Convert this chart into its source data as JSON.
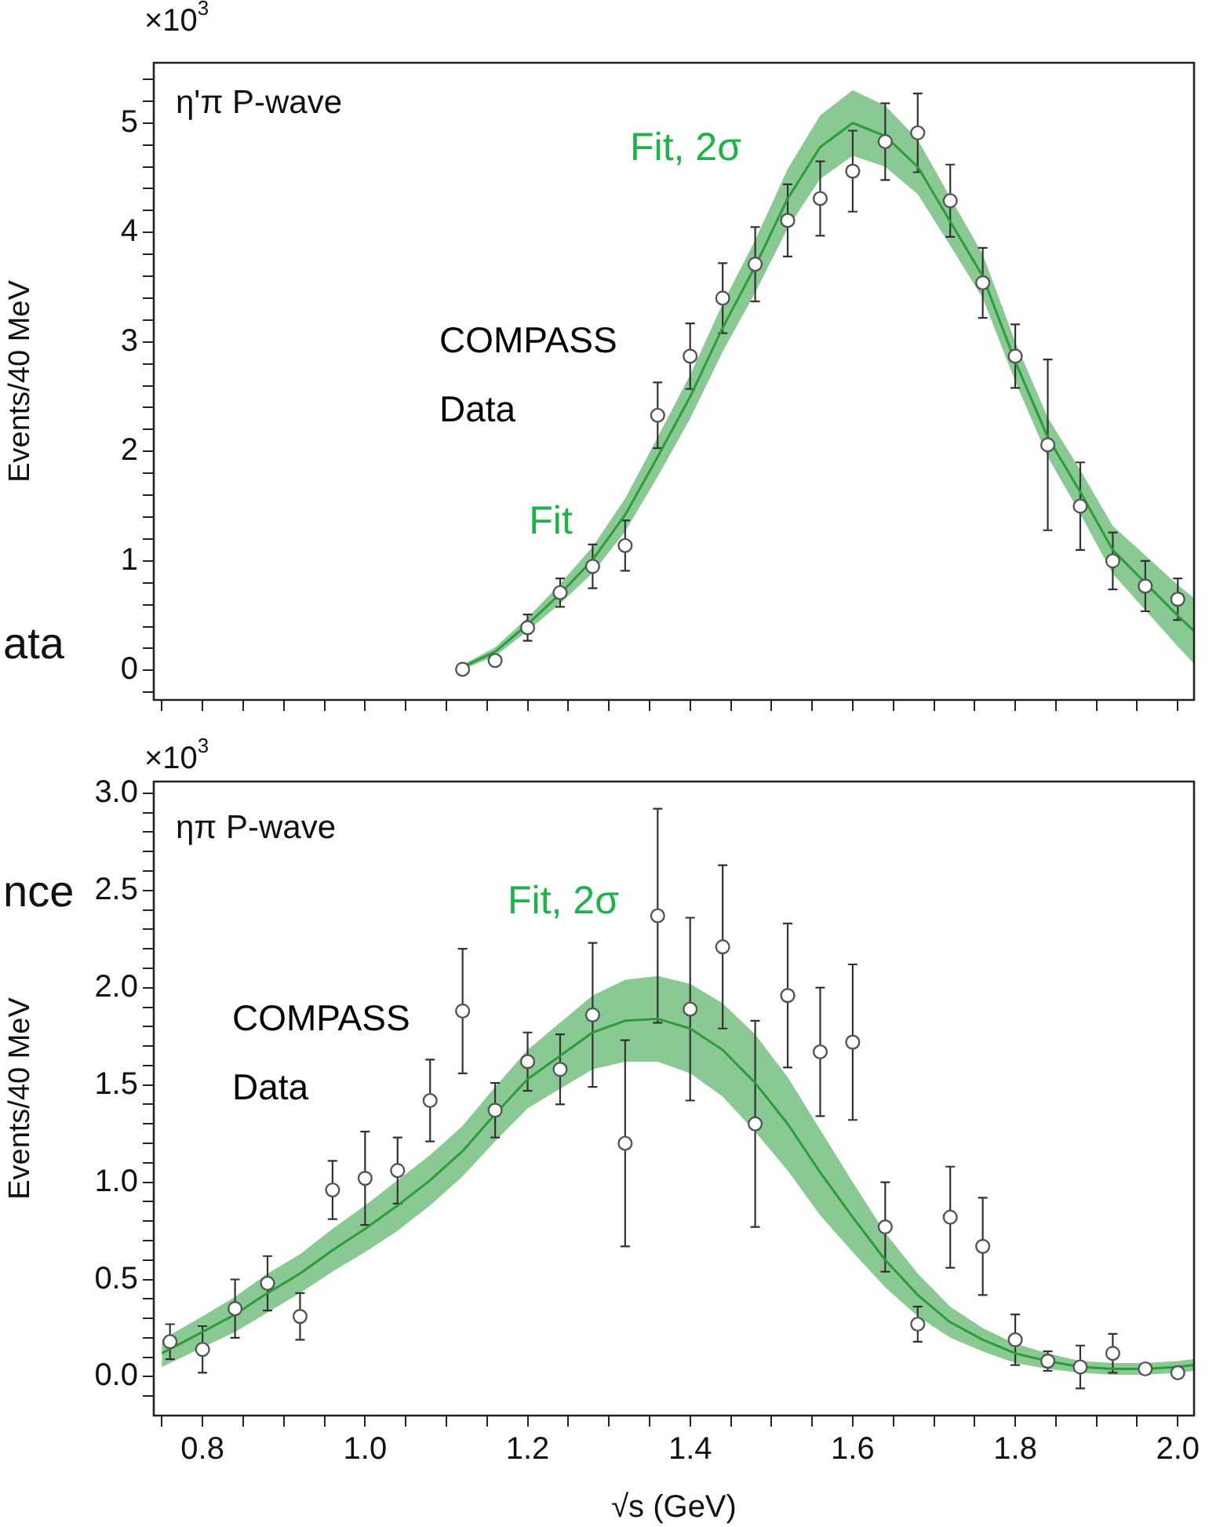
{
  "chart_data": [
    {
      "type": "scatter",
      "ylabel": "Events/40 MeV",
      "tick_labels": "y",
      "annotations": [
        "×10$^{3}$",
        "η'π P-wave",
        "ata",
        "Fit, 2σ",
        "Fit"
      ],
      "xlim": [
        0.74,
        2.02
      ],
      "ylim": [
        -0.27,
        5.55
      ],
      "xticks": [
        {
          "value": 0.75,
          "label": null
        },
        {
          "value": 0.8,
          "label": null
        },
        {
          "value": 0.85,
          "label": null
        },
        {
          "value": 0.9,
          "label": null
        },
        {
          "value": 0.95,
          "label": null
        },
        {
          "value": 1,
          "label": null
        },
        {
          "value": 1.05,
          "label": null
        },
        {
          "value": 1.1,
          "label": null
        },
        {
          "value": 1.15,
          "label": null
        },
        {
          "value": 1.2,
          "label": null
        },
        {
          "value": 1.25,
          "label": null
        },
        {
          "value": 1.3,
          "label": null
        },
        {
          "value": 1.35,
          "label": null
        },
        {
          "value": 1.4,
          "label": null
        },
        {
          "value": 1.45,
          "label": null
        },
        {
          "value": 1.5,
          "label": null
        },
        {
          "value": 1.55,
          "label": null
        },
        {
          "value": 1.6,
          "label": null
        },
        {
          "value": 1.65,
          "label": null
        },
        {
          "value": 1.7,
          "label": null
        },
        {
          "value": 1.75,
          "label": null
        },
        {
          "value": 1.8,
          "label": null
        },
        {
          "value": 1.85,
          "label": null
        },
        {
          "value": 1.9,
          "label": null
        },
        {
          "value": 1.95,
          "label": null
        },
        {
          "value": 2,
          "label": null
        }
      ],
      "yticks": [
        {
          "value": -0.2,
          "label": null
        },
        0,
        {
          "value": 0.2,
          "label": null
        },
        {
          "value": 0.4,
          "label": null
        },
        {
          "value": 0.6,
          "label": null
        },
        {
          "value": 0.8,
          "label": null
        },
        1,
        {
          "value": 1.2,
          "label": null
        },
        {
          "value": 1.4,
          "label": null
        },
        {
          "value": 1.6,
          "label": null
        },
        {
          "value": 1.8,
          "label": null
        },
        2,
        {
          "value": 2.2,
          "label": null
        },
        {
          "value": 2.4,
          "label": null
        },
        {
          "value": 2.6,
          "label": null
        },
        {
          "value": 2.8,
          "label": null
        },
        3,
        {
          "value": 3.2,
          "label": null
        },
        {
          "value": 3.4,
          "label": null
        },
        {
          "value": 3.6,
          "label": null
        },
        {
          "value": 3.8,
          "label": null
        },
        4,
        {
          "value": 4.2,
          "label": null
        },
        {
          "value": 4.4,
          "label": null
        },
        {
          "value": 4.6,
          "label": null
        },
        {
          "value": 4.8,
          "label": null
        },
        5,
        {
          "value": 5.2,
          "label": null
        },
        {
          "value": 5.4,
          "label": null
        }
      ],
      "series": [
        {
          "type": "line",
          "color": "#2a9d3a",
          "x": [
            1.12,
            1.16,
            1.2,
            1.24,
            1.28,
            1.32,
            1.36,
            1.4,
            1.44,
            1.48,
            1.52,
            1.56,
            1.6,
            1.64,
            1.68,
            1.72,
            1.76,
            1.8,
            1.84,
            1.88,
            1.92,
            1.96,
            2.0,
            2.02
          ],
          "values": [
            0.03,
            0.17,
            0.42,
            0.7,
            1.01,
            1.42,
            1.95,
            2.5,
            3.13,
            3.69,
            4.31,
            4.78,
            5.0,
            4.88,
            4.6,
            4.1,
            3.6,
            2.82,
            2.13,
            1.63,
            1.1,
            0.8,
            0.5,
            0.36
          ],
          "lower": [
            0.01,
            0.13,
            0.36,
            0.61,
            0.89,
            1.27,
            1.77,
            2.3,
            2.91,
            3.45,
            4.04,
            4.49,
            4.7,
            4.6,
            4.35,
            3.88,
            3.4,
            2.64,
            1.95,
            1.43,
            0.88,
            0.55,
            0.22,
            0.06
          ],
          "upper": [
            0.05,
            0.21,
            0.48,
            0.79,
            1.13,
            1.57,
            2.13,
            2.7,
            3.35,
            3.93,
            4.58,
            5.07,
            5.3,
            5.16,
            4.85,
            4.32,
            3.8,
            3.0,
            2.31,
            1.83,
            1.32,
            1.05,
            0.78,
            0.66
          ]
        },
        {
          "name": "COMPASS Data",
          "color": "#555555",
          "marker": "circle",
          "x": [
            1.12,
            1.16,
            1.2,
            1.24,
            1.28,
            1.32,
            1.36,
            1.4,
            1.44,
            1.48,
            1.52,
            1.56,
            1.6,
            1.64,
            1.68,
            1.72,
            1.76,
            1.8,
            1.84,
            1.88,
            1.92,
            1.96,
            2.0
          ],
          "values": [
            0.01,
            0.09,
            0.39,
            0.71,
            0.95,
            1.14,
            2.33,
            2.87,
            3.4,
            3.71,
            4.11,
            4.31,
            4.56,
            4.83,
            4.91,
            4.29,
            3.54,
            2.87,
            2.06,
            1.5,
            1.0,
            0.77,
            0.65
          ],
          "errors": [
            null,
            null,
            0.12,
            0.13,
            0.2,
            0.23,
            0.3,
            0.3,
            0.32,
            0.34,
            0.33,
            0.34,
            0.37,
            0.35,
            0.36,
            0.33,
            0.32,
            0.29,
            0.78,
            0.4,
            0.26,
            0.23,
            0.19
          ]
        }
      ]
    },
    {
      "type": "scatter",
      "ylabel": "Events/40 MeV",
      "xlabel": "√s (GeV)",
      "annotations": [
        "×10$^{3}$",
        "ηπ P-wave",
        "nce",
        "Fit, 2σ"
      ],
      "xlim": [
        0.74,
        2.02
      ],
      "ylim": [
        -0.2,
        3.06
      ],
      "xticks": [
        {
          "value": 0.75,
          "label": null
        },
        0.8,
        {
          "value": 0.85,
          "label": null
        },
        {
          "value": 0.9,
          "label": null
        },
        {
          "value": 0.95,
          "label": null
        },
        {
          "value": 1,
          "label": "1.0"
        },
        {
          "value": 1.05,
          "label": null
        },
        {
          "value": 1.1,
          "label": null
        },
        {
          "value": 1.15,
          "label": null
        },
        1.2,
        {
          "value": 1.25,
          "label": null
        },
        {
          "value": 1.3,
          "label": null
        },
        {
          "value": 1.35,
          "label": null
        },
        1.4,
        {
          "value": 1.45,
          "label": null
        },
        {
          "value": 1.5,
          "label": null
        },
        {
          "value": 1.55,
          "label": null
        },
        1.6,
        {
          "value": 1.65,
          "label": null
        },
        {
          "value": 1.7,
          "label": null
        },
        {
          "value": 1.75,
          "label": null
        },
        1.8,
        {
          "value": 1.85,
          "label": null
        },
        {
          "value": 1.9,
          "label": null
        },
        {
          "value": 1.95,
          "label": null
        },
        {
          "value": 2,
          "label": "2.0"
        }
      ],
      "yticks": [
        {
          "value": -0.1,
          "label": null
        },
        {
          "value": 0,
          "label": "0.0"
        },
        {
          "value": 0.1,
          "label": null
        },
        {
          "value": 0.2,
          "label": null
        },
        {
          "value": 0.3,
          "label": null
        },
        {
          "value": 0.4,
          "label": null
        },
        0.5,
        {
          "value": 0.6,
          "label": null
        },
        {
          "value": 0.7,
          "label": null
        },
        {
          "value": 0.8,
          "label": null
        },
        {
          "value": 0.9,
          "label": null
        },
        {
          "value": 1,
          "label": "1.0"
        },
        {
          "value": 1.1,
          "label": null
        },
        {
          "value": 1.2,
          "label": null
        },
        {
          "value": 1.3,
          "label": null
        },
        {
          "value": 1.4,
          "label": null
        },
        1.5,
        {
          "value": 1.6,
          "label": null
        },
        {
          "value": 1.7,
          "label": null
        },
        {
          "value": 1.8,
          "label": null
        },
        {
          "value": 1.9,
          "label": null
        },
        {
          "value": 2,
          "label": "2.0"
        },
        {
          "value": 2.1,
          "label": null
        },
        {
          "value": 2.2,
          "label": null
        },
        {
          "value": 2.3,
          "label": null
        },
        {
          "value": 2.4,
          "label": null
        },
        2.5,
        {
          "value": 2.6,
          "label": null
        },
        {
          "value": 2.7,
          "label": null
        },
        {
          "value": 2.8,
          "label": null
        },
        {
          "value": 2.9,
          "label": null
        },
        {
          "value": 3,
          "label": "3.0"
        }
      ],
      "series": [
        {
          "type": "line",
          "color": "#2a9d3a",
          "x": [
            0.75,
            0.8,
            0.84,
            0.88,
            0.92,
            0.96,
            1.0,
            1.04,
            1.08,
            1.12,
            1.16,
            1.2,
            1.24,
            1.28,
            1.32,
            1.36,
            1.4,
            1.44,
            1.48,
            1.52,
            1.56,
            1.6,
            1.64,
            1.68,
            1.72,
            1.76,
            1.8,
            1.84,
            1.88,
            1.92,
            1.96,
            2.0,
            2.02
          ],
          "values": [
            0.12,
            0.23,
            0.32,
            0.43,
            0.53,
            0.65,
            0.76,
            0.88,
            1.01,
            1.16,
            1.35,
            1.53,
            1.65,
            1.77,
            1.83,
            1.84,
            1.79,
            1.68,
            1.51,
            1.3,
            1.05,
            0.82,
            0.6,
            0.42,
            0.28,
            0.19,
            0.12,
            0.08,
            0.05,
            0.04,
            0.04,
            0.05,
            0.06
          ],
          "lower": [
            0.05,
            0.15,
            0.23,
            0.33,
            0.43,
            0.54,
            0.64,
            0.75,
            0.88,
            1.03,
            1.21,
            1.38,
            1.48,
            1.58,
            1.62,
            1.62,
            1.56,
            1.44,
            1.26,
            1.06,
            0.83,
            0.64,
            0.46,
            0.31,
            0.2,
            0.13,
            0.07,
            0.04,
            0.02,
            0.01,
            0.01,
            0.02,
            0.03
          ],
          "upper": [
            0.19,
            0.31,
            0.41,
            0.53,
            0.63,
            0.76,
            0.88,
            1.01,
            1.14,
            1.29,
            1.49,
            1.68,
            1.82,
            1.96,
            2.04,
            2.06,
            2.02,
            1.92,
            1.76,
            1.54,
            1.27,
            1.0,
            0.74,
            0.53,
            0.36,
            0.25,
            0.17,
            0.12,
            0.08,
            0.07,
            0.07,
            0.08,
            0.09
          ]
        },
        {
          "name": "COMPASS Data",
          "color": "#555555",
          "marker": "circle",
          "x": [
            0.76,
            0.8,
            0.84,
            0.88,
            0.92,
            0.96,
            1.0,
            1.04,
            1.08,
            1.12,
            1.16,
            1.2,
            1.24,
            1.28,
            1.32,
            1.36,
            1.4,
            1.44,
            1.48,
            1.52,
            1.56,
            1.6,
            1.64,
            1.68,
            1.72,
            1.76,
            1.8,
            1.84,
            1.88,
            1.92,
            1.96,
            2.0
          ],
          "values": [
            0.18,
            0.14,
            0.35,
            0.48,
            0.31,
            0.96,
            1.02,
            1.06,
            1.42,
            1.88,
            1.37,
            1.62,
            1.58,
            1.86,
            1.2,
            2.37,
            1.89,
            2.21,
            1.3,
            1.96,
            1.67,
            1.72,
            0.77,
            0.27,
            0.82,
            0.67,
            0.19,
            0.08,
            0.05,
            0.12,
            0.04,
            0.02
          ],
          "errors": [
            0.09,
            0.12,
            0.15,
            0.14,
            0.12,
            0.15,
            0.24,
            0.17,
            0.21,
            0.32,
            0.14,
            0.15,
            0.18,
            0.37,
            0.53,
            0.55,
            0.47,
            0.42,
            0.53,
            0.37,
            0.33,
            0.4,
            0.23,
            0.09,
            0.26,
            0.25,
            0.13,
            0.05,
            0.11,
            0.1,
            null,
            null
          ]
        }
      ]
    }
  ]
}
